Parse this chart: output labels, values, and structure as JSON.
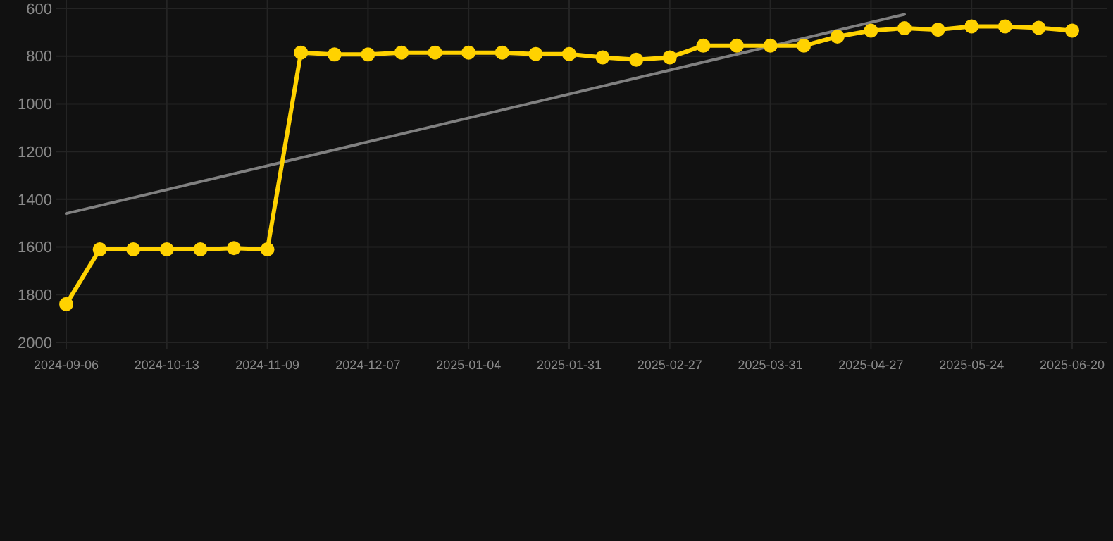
{
  "chart_data": {
    "type": "line",
    "categories": [
      "2024-09-06",
      null,
      null,
      "2024-10-13",
      null,
      null,
      "2024-11-09",
      null,
      null,
      "2024-12-07",
      null,
      null,
      "2025-01-04",
      null,
      null,
      "2025-01-31",
      null,
      null,
      "2025-02-27",
      null,
      null,
      "2025-03-31",
      null,
      null,
      "2025-04-27",
      null,
      null,
      "2025-05-24",
      null,
      null,
      "2025-06-20"
    ],
    "series": [
      {
        "color": "#ffd200",
        "marker": "circle",
        "values": [
          1840,
          1610,
          1610,
          1610,
          1610,
          1605,
          1610,
          785,
          793,
          793,
          785,
          785,
          785,
          785,
          791,
          791,
          805,
          815,
          805,
          756,
          756,
          756,
          756,
          718,
          693,
          683,
          689,
          675,
          675,
          681,
          693
        ]
      },
      {
        "color": "#808080",
        "marker": "none",
        "values": [
          1460,
          null,
          null,
          null,
          null,
          null,
          null,
          null,
          null,
          null,
          null,
          null,
          null,
          null,
          null,
          null,
          null,
          null,
          null,
          null,
          null,
          null,
          null,
          null,
          null,
          625,
          null,
          null,
          null,
          null,
          null
        ]
      }
    ],
    "ylim": [
      2000,
      600
    ],
    "yticks": [
      600,
      800,
      1000,
      1200,
      1400,
      1600,
      1800,
      2000
    ],
    "grid": true
  }
}
